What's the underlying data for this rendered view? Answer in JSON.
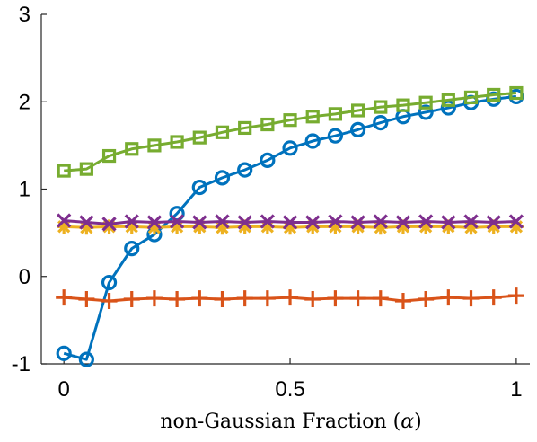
{
  "chart_data": {
    "type": "line",
    "title": "",
    "xlabel_text": "non-Gaussian Fraction (",
    "xlabel_symbol": "α",
    "xlabel_close": ")",
    "ylabel": "",
    "xlim": [
      -0.05,
      1.03
    ],
    "ylim": [
      -1,
      3
    ],
    "xticks": [
      0,
      0.5,
      1
    ],
    "xtick_labels": [
      "0",
      "0.5",
      "1"
    ],
    "yticks": [
      -1,
      0,
      1,
      2,
      3
    ],
    "ytick_labels": [
      "-1",
      "0",
      "1",
      "2",
      "3"
    ],
    "grid": false,
    "legend": "none",
    "x": [
      0,
      0.05,
      0.1,
      0.15,
      0.2,
      0.25,
      0.3,
      0.35,
      0.4,
      0.45,
      0.5,
      0.55,
      0.6,
      0.65,
      0.7,
      0.75,
      0.8,
      0.85,
      0.9,
      0.95,
      1
    ],
    "series": [
      {
        "marker": "circle",
        "color": "#0072BD",
        "values": [
          -0.88,
          -0.95,
          -0.07,
          0.32,
          0.48,
          0.72,
          1.02,
          1.13,
          1.22,
          1.33,
          1.47,
          1.55,
          1.61,
          1.68,
          1.76,
          1.83,
          1.88,
          1.93,
          1.99,
          2.03,
          2.06
        ]
      },
      {
        "marker": "plus",
        "color": "#D95319",
        "values": [
          -0.24,
          -0.26,
          -0.28,
          -0.26,
          -0.25,
          -0.26,
          -0.25,
          -0.26,
          -0.25,
          -0.25,
          -0.24,
          -0.26,
          -0.25,
          -0.25,
          -0.25,
          -0.28,
          -0.26,
          -0.24,
          -0.25,
          -0.24,
          -0.22
        ]
      },
      {
        "marker": "asterisk",
        "color": "#EDB120",
        "values": [
          0.57,
          0.56,
          0.57,
          0.57,
          0.56,
          0.57,
          0.57,
          0.56,
          0.57,
          0.57,
          0.56,
          0.57,
          0.57,
          0.57,
          0.56,
          0.57,
          0.57,
          0.57,
          0.56,
          0.57,
          0.57
        ]
      },
      {
        "marker": "x",
        "color": "#7E2F8E",
        "values": [
          0.64,
          0.62,
          0.6,
          0.63,
          0.62,
          0.63,
          0.62,
          0.63,
          0.62,
          0.63,
          0.62,
          0.62,
          0.63,
          0.62,
          0.63,
          0.62,
          0.63,
          0.62,
          0.63,
          0.62,
          0.63
        ]
      },
      {
        "marker": "square",
        "color": "#77AC30",
        "values": [
          1.21,
          1.23,
          1.38,
          1.46,
          1.5,
          1.54,
          1.59,
          1.65,
          1.7,
          1.74,
          1.79,
          1.83,
          1.86,
          1.9,
          1.94,
          1.96,
          1.99,
          2.02,
          2.05,
          2.08,
          2.1
        ]
      }
    ]
  }
}
